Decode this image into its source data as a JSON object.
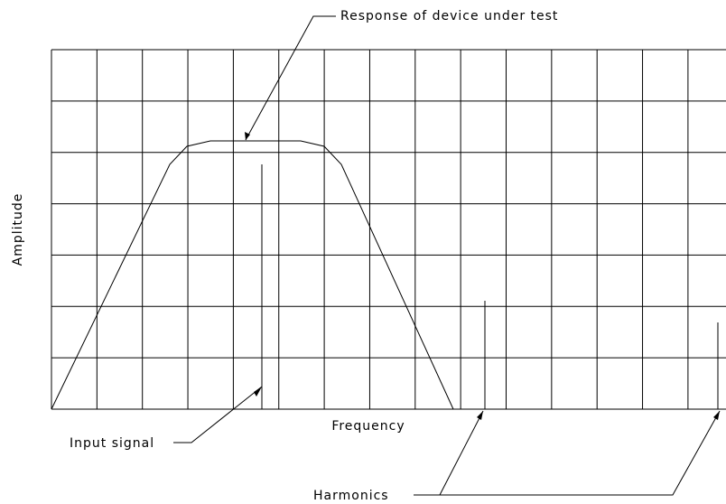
{
  "title": "Response of device under test",
  "axes": {
    "y_label": "Amplitude",
    "x_label": "Frequency"
  },
  "annotations": {
    "input": "Input signal",
    "harmonics": "Harmonics"
  }
}
